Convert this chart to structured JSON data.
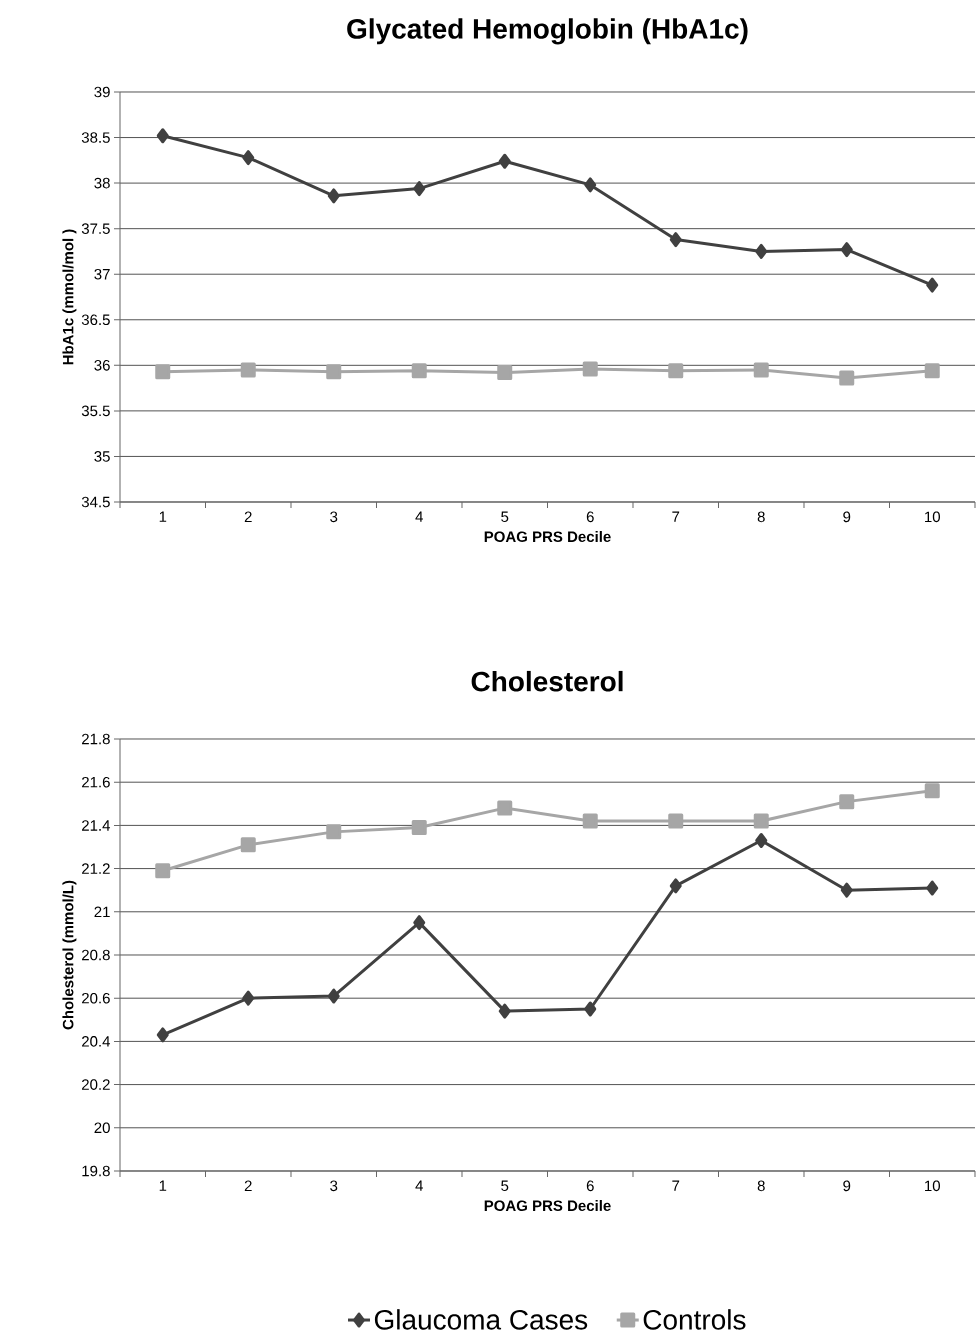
{
  "chart_data": [
    {
      "type": "line",
      "title": "Glycated Hemoglobin (HbA1c)",
      "xlabel": "POAG PRS Decile",
      "ylabel": "HbA1c (mmol/mol )",
      "categories": [
        "1",
        "2",
        "3",
        "4",
        "5",
        "6",
        "7",
        "8",
        "9",
        "10"
      ],
      "series": [
        {
          "color": "#404040",
          "marker": "diamond",
          "values": [
            38.52,
            38.28,
            37.86,
            37.94,
            38.24,
            37.98,
            37.38,
            37.25,
            37.27,
            36.88
          ]
        },
        {
          "color": "#a6a6a6",
          "marker": "square",
          "values": [
            35.93,
            35.95,
            35.93,
            35.94,
            35.92,
            35.96,
            35.94,
            35.95,
            35.86,
            35.94
          ]
        }
      ],
      "ylim": [
        34.5,
        39
      ],
      "yticks": [
        34.5,
        35,
        35.5,
        36,
        36.5,
        37,
        37.5,
        38,
        38.5,
        39
      ],
      "grid": "y"
    },
    {
      "type": "line",
      "title": "Cholesterol",
      "xlabel": "POAG PRS Decile",
      "ylabel": "Cholesterol (mmol/L)",
      "categories": [
        "1",
        "2",
        "3",
        "4",
        "5",
        "6",
        "7",
        "8",
        "9",
        "10"
      ],
      "series": [
        {
          "name": "Glaucoma Cases",
          "color": "#404040",
          "marker": "diamond",
          "values": [
            20.43,
            20.6,
            20.61,
            20.95,
            20.54,
            20.55,
            21.12,
            21.33,
            21.1,
            21.11
          ]
        },
        {
          "name": "Controls",
          "color": "#a6a6a6",
          "marker": "square",
          "values": [
            21.19,
            21.31,
            21.37,
            21.39,
            21.48,
            21.42,
            21.42,
            21.42,
            21.51,
            21.56
          ]
        }
      ],
      "ylim": [
        19.8,
        21.8
      ],
      "yticks": [
        19.8,
        20,
        20.2,
        20.4,
        20.6,
        20.8,
        21,
        21.2,
        21.4,
        21.6,
        21.8
      ],
      "grid": "y",
      "legend": "bottom"
    }
  ]
}
